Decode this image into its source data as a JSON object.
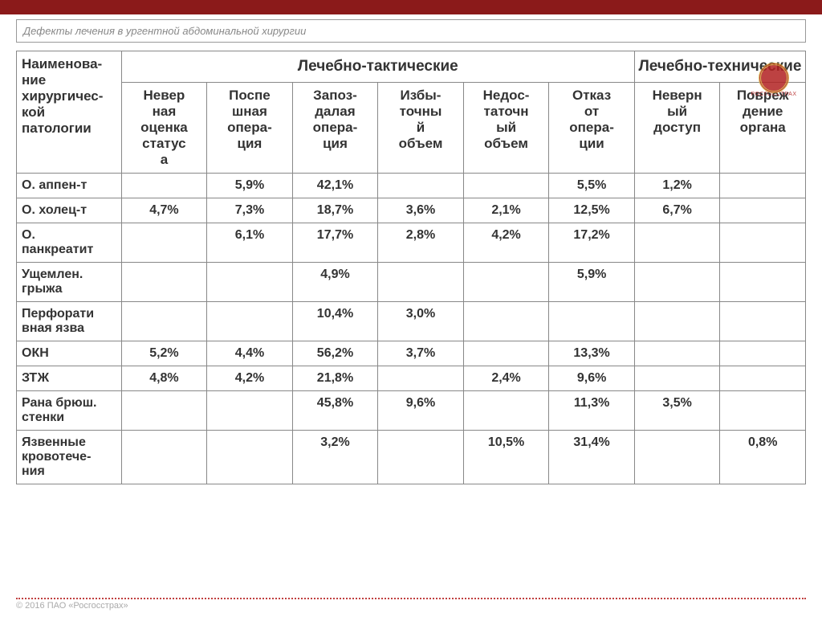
{
  "colors": {
    "top_bar": "#8b1a1a",
    "border": "#888888",
    "title_text": "#888888",
    "cell_text": "#333333",
    "dotted": "#c04040",
    "logo_red": "#b22222",
    "background": "#ffffff"
  },
  "title": "Дефекты лечения в ургентной абдоминальной хирургии",
  "logo_text": "РОСГОССТРАХ",
  "footer": "© 2016 ПАО «Росгосстрах»",
  "table": {
    "row_header": "Наименова-ние хирургичес-кой патологии",
    "group_headers": [
      {
        "label": "Лечебно-тактические",
        "span": 6
      },
      {
        "label": "Лечебно-технические",
        "span": 2
      }
    ],
    "sub_headers": [
      "Невер\nная\nоценка\nстатус\nа",
      "Поспе\nшная\nопера-\nция",
      "Запоз-\nдалая\nопера-\nция",
      "Избы-\nточны\nй\nобъем",
      "Недос-\nтаточн\nый\nобъем",
      "Отказ\nот\nопера-\nции",
      "Неверн\nый\nдоступ",
      "Повреж\nдение\nоргана"
    ],
    "rows": [
      {
        "label": "О. аппен-т",
        "cells": [
          "",
          "5,9%",
          "42,1%",
          "",
          "",
          "5,5%",
          "1,2%",
          ""
        ]
      },
      {
        "label": "О. холец-т",
        "cells": [
          "4,7%",
          "7,3%",
          "18,7%",
          "3,6%",
          "2,1%",
          "12,5%",
          "6,7%",
          ""
        ]
      },
      {
        "label": "О.\nпанкреатит",
        "cells": [
          "",
          "6,1%",
          "17,7%",
          "2,8%",
          "4,2%",
          "17,2%",
          "",
          ""
        ]
      },
      {
        "label": "Ущемлен.\nгрыжа",
        "cells": [
          "",
          "",
          "4,9%",
          "",
          "",
          "5,9%",
          "",
          ""
        ]
      },
      {
        "label": "Перфорати\nвная язва",
        "cells": [
          "",
          "",
          "10,4%",
          "3,0%",
          "",
          "",
          "",
          ""
        ]
      },
      {
        "label": "ОКН",
        "cells": [
          "5,2%",
          "4,4%",
          "56,2%",
          "3,7%",
          "",
          "13,3%",
          "",
          ""
        ]
      },
      {
        "label": "ЗТЖ",
        "cells": [
          "4,8%",
          "4,2%",
          "21,8%",
          "",
          "2,4%",
          "9,6%",
          "",
          ""
        ]
      },
      {
        "label": "Рана брюш.\nстенки",
        "cells": [
          "",
          "",
          "45,8%",
          "9,6%",
          "",
          "11,3%",
          "3,5%",
          ""
        ]
      },
      {
        "label": "Язвенные\nкровотече-\nния",
        "cells": [
          "",
          "",
          "3,2%",
          "",
          "10,5%",
          "31,4%",
          "",
          "0,8%"
        ]
      }
    ]
  }
}
